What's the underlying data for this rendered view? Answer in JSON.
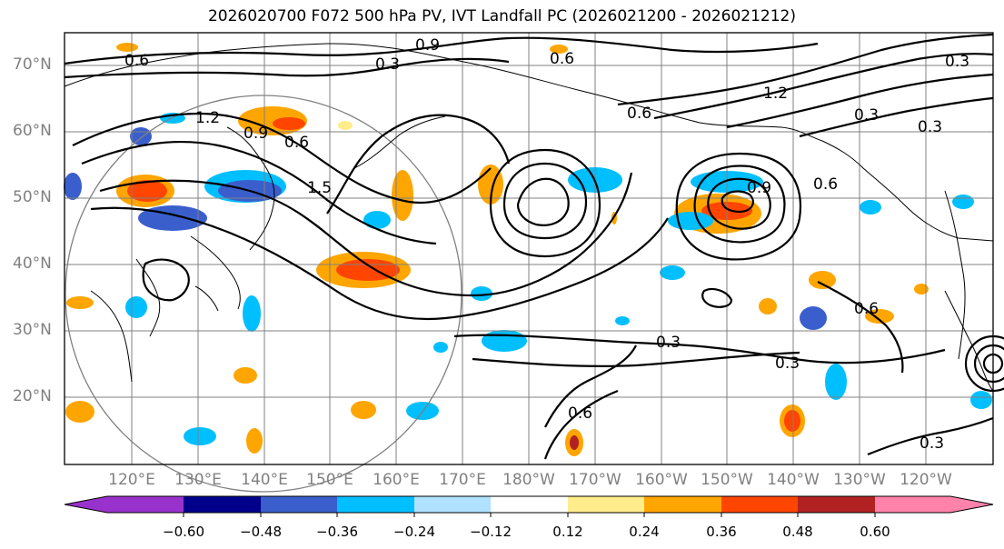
{
  "title": "2026020700 F072 500 hPa PV, IVT Landfall PC (2026021200 - 2026021212)",
  "map": {
    "lat_labels": [
      "70°N",
      "60°N",
      "50°N",
      "40°N",
      "30°N",
      "20°N"
    ],
    "lon_labels": [
      "120°E",
      "130°E",
      "140°E",
      "150°E",
      "160°E",
      "170°E",
      "180°W",
      "170°W",
      "160°W",
      "150°W",
      "140°W",
      "130°W",
      "120°W"
    ],
    "contour_labels": [
      "0.6",
      "0.9",
      "0.3",
      "0.6",
      "1.2",
      "0.9",
      "0.6",
      "1.5",
      "1.2",
      "0.3",
      "0.6",
      "0.3",
      "0.9",
      "0.6",
      "0.3",
      "0.3",
      "0.6",
      "0.3",
      "0.6",
      "0.3"
    ],
    "contour_color": "#000000",
    "grid_color": "#808080"
  },
  "colorbar": {
    "tick_labels": [
      "−0.60",
      "−0.48",
      "−0.36",
      "−0.24",
      "−0.12",
      "0.12",
      "0.24",
      "0.36",
      "0.48",
      "0.60"
    ],
    "colors": [
      "#9932cc",
      "#00008b",
      "#3a5fcd",
      "#00bfff",
      "#b0e2ff",
      "#ffffff",
      "#ffec8b",
      "#ffa500",
      "#ff4500",
      "#b22222",
      "#ff82ab"
    ]
  }
}
